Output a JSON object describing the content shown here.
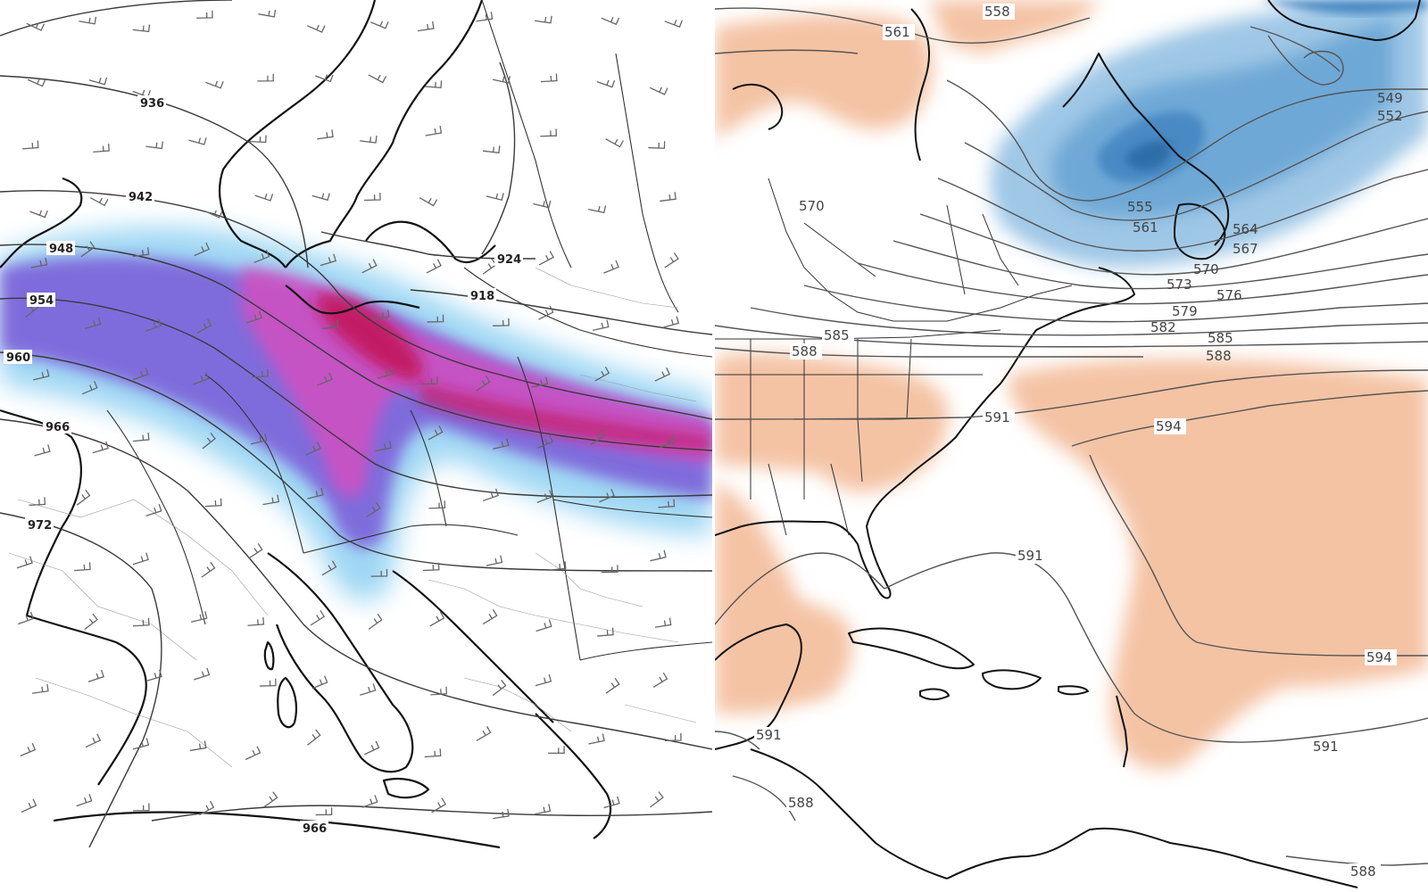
{
  "left_map": {
    "contour_labels": [
      "936",
      "942",
      "948",
      "954",
      "960",
      "966",
      "972",
      "924",
      "918",
      "966"
    ]
  },
  "right_map": {
    "contour_labels": [
      "558",
      "561",
      "570",
      "549",
      "552",
      "555",
      "561",
      "564",
      "567",
      "570",
      "573",
      "576",
      "579",
      "582",
      "585",
      "588",
      "585",
      "588",
      "591",
      "594",
      "591",
      "594",
      "591",
      "591",
      "588",
      "588"
    ]
  },
  "colors": {
    "warm_anomaly": "#f4c3a4",
    "cold_anomaly": "#5fa3d4",
    "precip_light": "#8fd0f2",
    "precip_mid": "#7a5ad8",
    "precip_heavy": "#d24fc0",
    "precip_core": "#c2185b",
    "coastline": "#111111",
    "contour": "#555555"
  }
}
